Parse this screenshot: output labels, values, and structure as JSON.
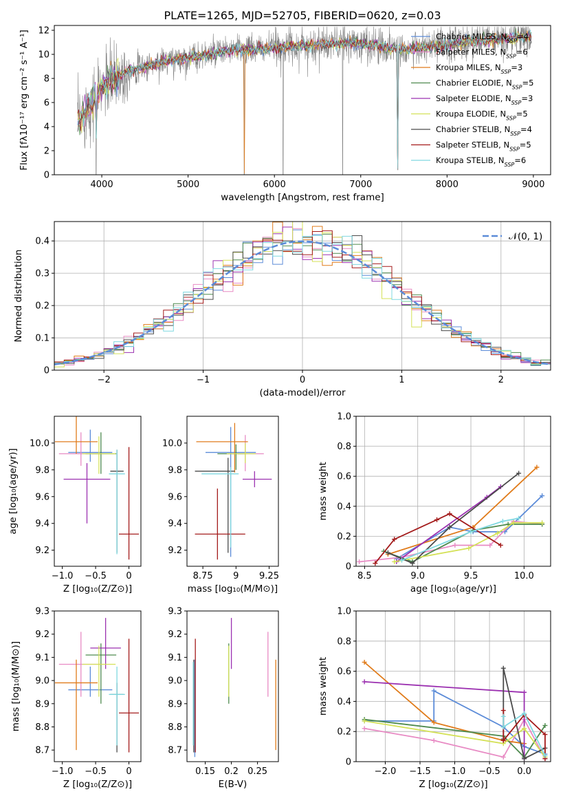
{
  "chart_data": [
    {
      "type": "line",
      "title": "PLATE=1265, MJD=52705, FIBERID=0620, z=0.03",
      "xlabel": "wavelength [Angstrom, rest frame]",
      "ylabel": "Flux [fλ10⁻¹⁷ erg cm⁻² s⁻¹ A⁻¹]",
      "xlim": [
        3450,
        9200
      ],
      "ylim": [
        0,
        12.4
      ],
      "xticks": [
        4000,
        5000,
        6000,
        7000,
        8000,
        9000
      ],
      "yticks": [
        0,
        2,
        4,
        6,
        8,
        10,
        12
      ],
      "grid": false,
      "legend_position": "right",
      "observed_color": "#808080",
      "series": [
        {
          "name": "Chabrier MILES, N_SSP=4",
          "color": "#5b8bd8"
        },
        {
          "name": "Salpeter MILES, N_SSP=6",
          "color": "#e88bc4"
        },
        {
          "name": "Kroupa MILES, N_SSP=3",
          "color": "#e07b1a"
        },
        {
          "name": "Chabrier ELODIE, N_SSP=5",
          "color": "#4e8a4e"
        },
        {
          "name": "Salpeter ELODIE, N_SSP=3",
          "color": "#9b30b0"
        },
        {
          "name": "Kroupa ELODIE, N_SSP=5",
          "color": "#d4e157"
        },
        {
          "name": "Chabrier STELIB, N_SSP=4",
          "color": "#4a4a4a"
        },
        {
          "name": "Salpeter STELIB, N_SSP=5",
          "color": "#a31a1a"
        },
        {
          "name": "Kroupa STELIB, N_SSP=6",
          "color": "#7fd8e0"
        }
      ],
      "continuum_x": [
        3700,
        3800,
        3900,
        4000,
        4100,
        4300,
        4500,
        4700,
        4900,
        5100,
        5300,
        5500,
        5700,
        5900,
        6100,
        6300,
        6500,
        6700,
        6900,
        7100,
        7300,
        7500,
        7700,
        7900,
        8100,
        8300,
        8500,
        8700,
        8900
      ],
      "continuum_y": [
        4.3,
        5.2,
        6.2,
        7.2,
        7.9,
        8.6,
        9.0,
        9.4,
        9.6,
        9.8,
        10.1,
        10.3,
        10.4,
        10.5,
        10.6,
        10.7,
        10.8,
        10.9,
        10.9,
        10.8,
        10.6,
        10.4,
        10.5,
        10.7,
        10.9,
        11.1,
        11.2,
        11.3,
        11.5
      ],
      "absorption_dips": [
        {
          "x": 3935,
          "depth": 0
        },
        {
          "x": 5650,
          "depth": 0
        },
        {
          "x": 6100,
          "depth": 0
        },
        {
          "x": 6790,
          "depth": 0
        },
        {
          "x": 7430,
          "depth": 0.4
        }
      ]
    },
    {
      "type": "bar",
      "xlabel": "(data-model)/error",
      "ylabel": "Normed distribution",
      "xlim": [
        -2.5,
        2.5
      ],
      "ylim": [
        0,
        0.46
      ],
      "xticks": [
        -2,
        -1,
        0,
        1,
        2
      ],
      "yticks": [
        0.0,
        0.1,
        0.2,
        0.3,
        0.4
      ],
      "grid": true,
      "legend_position": "top-right",
      "reference_curve": {
        "name": "𝒩(0, 1)",
        "mean": 0,
        "std": 1,
        "color": "#5b8bd8"
      },
      "bin_width": 0.1,
      "histogram_style": "step, one per model, same colors as spectrum"
    },
    {
      "type": "scatter",
      "xlabel": "Z [log₁₀(Z/Z⊙)]",
      "ylabel": "age  [log₁₀(age/yr)]",
      "xlim": [
        -1.12,
        0.18
      ],
      "ylim": [
        9.08,
        10.2
      ],
      "xticks": [
        -1.0,
        -0.5,
        0.0
      ],
      "yticks": [
        9.2,
        9.4,
        9.6,
        9.8,
        10.0
      ],
      "points": [
        {
          "x": -0.58,
          "y": 9.93,
          "xerr": [
            0.33,
            0.33
          ],
          "yerr": [
            0.07,
            0.17
          ],
          "color": "#5b8bd8"
        },
        {
          "x": -0.72,
          "y": 9.92,
          "xerr": [
            0.33,
            0.33
          ],
          "yerr": [
            0.09,
            0.16
          ],
          "color": "#e88bc4"
        },
        {
          "x": -0.79,
          "y": 10.01,
          "xerr": [
            0.32,
            0.32
          ],
          "yerr": [
            0.09,
            0.35
          ],
          "color": "#e07b1a"
        },
        {
          "x": -0.42,
          "y": 9.92,
          "xerr": [
            0.23,
            0.23
          ],
          "yerr": [
            0.15,
            0.16
          ],
          "color": "#4e8a4e"
        },
        {
          "x": -0.63,
          "y": 9.73,
          "xerr": [
            0.35,
            0.35
          ],
          "yerr": [
            0.33,
            0.12
          ],
          "color": "#9b30b0"
        },
        {
          "x": -0.45,
          "y": 9.92,
          "xerr": [
            0.25,
            0.25
          ],
          "yerr": [
            0.15,
            0.13
          ],
          "color": "#d4e157"
        },
        {
          "x": -0.18,
          "y": 9.79,
          "xerr": [
            0.1,
            0.1
          ],
          "yerr": [
            0.61,
            0.16
          ],
          "color": "#4a4a4a"
        },
        {
          "x": 0.0,
          "y": 9.32,
          "xerr": [
            0.15,
            0.15
          ],
          "yerr": [
            0.19,
            0.65
          ],
          "color": "#a31a1a"
        },
        {
          "x": -0.18,
          "y": 9.77,
          "xerr": [
            0.12,
            0.12
          ],
          "yerr": [
            0.6,
            0.18
          ],
          "color": "#7fd8e0"
        }
      ]
    },
    {
      "type": "scatter",
      "xlabel": "mass [log₁₀(M/M⊙)]",
      "ylabel": "",
      "xlim": [
        8.63,
        9.32
      ],
      "ylim": [
        9.08,
        10.2
      ],
      "xticks": [
        8.75,
        9.0,
        9.25
      ],
      "yticks": [
        9.2,
        9.4,
        9.6,
        9.8,
        10.0
      ],
      "points": [
        {
          "x": 8.96,
          "y": 9.93,
          "xerr": [
            0.19,
            0.19
          ],
          "yerr": [
            0.78,
            0.19
          ],
          "color": "#5b8bd8"
        },
        {
          "x": 9.07,
          "y": 9.92,
          "xerr": [
            0.14,
            0.14
          ],
          "yerr": [
            0.13,
            0.14
          ],
          "color": "#e88bc4"
        },
        {
          "x": 8.99,
          "y": 10.01,
          "xerr": [
            0.29,
            0.1
          ],
          "yerr": [
            0.23,
            0.14
          ],
          "color": "#e07b1a"
        },
        {
          "x": 9.0,
          "y": 9.92,
          "xerr": [
            0.14,
            0.07
          ],
          "yerr": [
            0.12,
            0.07
          ],
          "color": "#4e8a4e"
        },
        {
          "x": 9.14,
          "y": 9.73,
          "xerr": [
            0.09,
            0.13
          ],
          "yerr": [
            0.06,
            0.06
          ],
          "color": "#9b30b0"
        },
        {
          "x": 9.07,
          "y": 9.92,
          "xerr": [
            0.14,
            0.08
          ],
          "yerr": [
            0.07,
            0.08
          ],
          "color": "#d4e157"
        },
        {
          "x": 8.94,
          "y": 9.79,
          "xerr": [
            0.25,
            0.05
          ],
          "yerr": [
            0.61,
            0.1
          ],
          "color": "#4a4a4a"
        },
        {
          "x": 8.86,
          "y": 9.32,
          "xerr": [
            0.17,
            0.21
          ],
          "yerr": [
            0.19,
            0.34
          ],
          "color": "#a31a1a"
        },
        {
          "x": 8.96,
          "y": 9.77,
          "xerr": [
            0.22,
            0.06
          ],
          "yerr": [
            0.55,
            0.05
          ],
          "color": "#7fd8e0"
        }
      ]
    },
    {
      "type": "line",
      "xlabel": "age  [log₁₀(age/yr)]",
      "ylabel": "mass weight",
      "xlim": [
        8.42,
        10.25
      ],
      "ylim": [
        0,
        1
      ],
      "xticks": [
        8.5,
        9.0,
        9.5,
        10.0
      ],
      "yticks": [
        0.0,
        0.2,
        0.4,
        0.6,
        0.8,
        1.0
      ],
      "grid": true,
      "series": [
        {
          "color": "#5b8bd8",
          "x": [
            8.8,
            9.3,
            9.52,
            9.82,
            10.17
          ],
          "y": [
            0.05,
            0.26,
            0.23,
            0.23,
            0.47
          ]
        },
        {
          "color": "#e88bc4",
          "x": [
            8.45,
            8.85,
            9.35,
            9.68,
            9.9,
            10.17
          ],
          "y": [
            0.03,
            0.06,
            0.14,
            0.14,
            0.3,
            0.28
          ]
        },
        {
          "color": "#e07b1a",
          "x": [
            8.72,
            9.52,
            10.12
          ],
          "y": [
            0.08,
            0.26,
            0.66
          ]
        },
        {
          "color": "#4e8a4e",
          "x": [
            8.68,
            8.95,
            9.52,
            9.85,
            10.17
          ],
          "y": [
            0.1,
            0.03,
            0.24,
            0.28,
            0.28
          ]
        },
        {
          "color": "#9b30b0",
          "x": [
            8.8,
            9.65,
            9.78
          ],
          "y": [
            0.03,
            0.46,
            0.53
          ]
        },
        {
          "color": "#d4e157",
          "x": [
            8.78,
            9.48,
            9.75,
            9.9,
            10.17
          ],
          "y": [
            0.03,
            0.12,
            0.22,
            0.29,
            0.29
          ]
        },
        {
          "color": "#4a4a4a",
          "x": [
            8.72,
            8.95,
            9.3,
            9.95
          ],
          "y": [
            0.09,
            0.02,
            0.26,
            0.62
          ]
        },
        {
          "color": "#a31a1a",
          "x": [
            8.6,
            8.78,
            9.18,
            9.3,
            9.78
          ],
          "y": [
            0.02,
            0.18,
            0.31,
            0.35,
            0.14
          ]
        },
        {
          "color": "#7fd8e0",
          "x": [
            8.85,
            9.5,
            9.8,
            9.95
          ],
          "y": [
            0.04,
            0.23,
            0.3,
            0.32
          ]
        }
      ]
    },
    {
      "type": "scatter",
      "xlabel": "Z [log₁₀(Z/Z⊙)]",
      "ylabel": "mass [log₁₀(M/M⊙)]",
      "xlim": [
        -1.12,
        0.18
      ],
      "ylim": [
        8.65,
        9.3
      ],
      "xticks": [
        -1.0,
        -0.5,
        0.0
      ],
      "yticks": [
        8.7,
        8.8,
        8.9,
        9.0,
        9.1,
        9.2,
        9.3
      ],
      "points": [
        {
          "x": -0.58,
          "y": 8.96,
          "xerr": [
            0.33,
            0.33
          ],
          "yerr": [
            0.03,
            0.1
          ],
          "color": "#5b8bd8"
        },
        {
          "x": -0.72,
          "y": 9.07,
          "xerr": [
            0.33,
            0.33
          ],
          "yerr": [
            0.14,
            0.14
          ],
          "color": "#e88bc4"
        },
        {
          "x": -0.79,
          "y": 8.99,
          "xerr": [
            0.32,
            0.32
          ],
          "yerr": [
            0.29,
            0.1
          ],
          "color": "#e07b1a"
        },
        {
          "x": -0.42,
          "y": 9.11,
          "xerr": [
            0.23,
            0.23
          ],
          "yerr": [
            0.21,
            0.05
          ],
          "color": "#4e8a4e"
        },
        {
          "x": -0.35,
          "y": 9.14,
          "xerr": [
            0.23,
            0.23
          ],
          "yerr": [
            0.09,
            0.13
          ],
          "color": "#9b30b0"
        },
        {
          "x": -0.45,
          "y": 9.07,
          "xerr": [
            0.25,
            0.25
          ],
          "yerr": [
            0.14,
            0.08
          ],
          "color": "#d4e157"
        },
        {
          "x": -0.18,
          "y": 8.94,
          "xerr": [
            0.1,
            0.1
          ],
          "yerr": [
            0.25,
            0.05
          ],
          "color": "#4a4a4a"
        },
        {
          "x": 0.0,
          "y": 8.86,
          "xerr": [
            0.15,
            0.15
          ],
          "yerr": [
            0.17,
            0.32
          ],
          "color": "#a31a1a"
        },
        {
          "x": -0.18,
          "y": 8.94,
          "xerr": [
            0.12,
            0.12
          ],
          "yerr": [
            0.22,
            0.12
          ],
          "color": "#7fd8e0"
        }
      ]
    },
    {
      "type": "scatter",
      "xlabel": "E(B-V)",
      "ylabel": "",
      "xlim": [
        0.115,
        0.29
      ],
      "ylim": [
        8.65,
        9.3
      ],
      "xticks": [
        0.15,
        0.2,
        0.25
      ],
      "yticks": [
        8.7,
        8.8,
        8.9,
        9.0,
        9.1,
        9.2,
        9.3
      ],
      "points": [
        {
          "x": 0.13,
          "y": 8.96,
          "yerr": [
            0.29,
            0.13
          ],
          "color": "#5b8bd8"
        },
        {
          "x": 0.27,
          "y": 9.07,
          "yerr": [
            0.14,
            0.14
          ],
          "color": "#e88bc4"
        },
        {
          "x": 0.285,
          "y": 8.99,
          "yerr": [
            0.29,
            0.1
          ],
          "color": "#e07b1a"
        },
        {
          "x": 0.195,
          "y": 9.11,
          "yerr": [
            0.21,
            0.05
          ],
          "color": "#4e8a4e"
        },
        {
          "x": 0.2,
          "y": 9.14,
          "yerr": [
            0.09,
            0.13
          ],
          "color": "#9b30b0"
        },
        {
          "x": 0.195,
          "y": 9.07,
          "yerr": [
            0.14,
            0.08
          ],
          "color": "#d4e157"
        },
        {
          "x": 0.128,
          "y": 8.94,
          "yerr": [
            0.25,
            0.15
          ],
          "color": "#4a4a4a"
        },
        {
          "x": 0.131,
          "y": 9.0,
          "yerr": [
            0.31,
            0.18
          ],
          "color": "#a31a1a"
        },
        {
          "x": 0.127,
          "y": 8.94,
          "yerr": [
            0.22,
            0.14
          ],
          "color": "#7fd8e0"
        }
      ]
    },
    {
      "type": "line",
      "xlabel": "Z [log₁₀(Z/Z⊙)]",
      "ylabel": "mass weight",
      "xlim": [
        -2.42,
        0.38
      ],
      "ylim": [
        0,
        1
      ],
      "xticks": [
        -2.0,
        -1.5,
        -1.0,
        -0.5,
        0.0
      ],
      "yticks": [
        0.0,
        0.2,
        0.4,
        0.6,
        0.8,
        1.0
      ],
      "grid": true,
      "series": [
        {
          "color": "#5b8bd8",
          "x": [
            -2.3,
            -1.3,
            -1.3,
            -0.3,
            0.0,
            0.3
          ],
          "y": [
            0.27,
            0.27,
            0.47,
            0.23,
            0.1,
            0.05
          ]
        },
        {
          "color": "#e88bc4",
          "x": [
            -2.3,
            -1.3,
            -0.3,
            0.0,
            0.3
          ],
          "y": [
            0.22,
            0.14,
            0.03,
            0.28,
            0.02
          ]
        },
        {
          "color": "#e07b1a",
          "x": [
            -2.3,
            -1.3,
            -0.3,
            0.0
          ],
          "y": [
            0.66,
            0.26,
            0.14,
            0.12
          ]
        },
        {
          "color": "#4e8a4e",
          "x": [
            -2.3,
            -0.3,
            0.0,
            0.3
          ],
          "y": [
            0.28,
            0.17,
            0.03,
            0.24
          ]
        },
        {
          "color": "#9b30b0",
          "x": [
            -2.3,
            0.0,
            0.0
          ],
          "y": [
            0.53,
            0.46,
            0.02
          ]
        },
        {
          "color": "#d4e157",
          "x": [
            -2.3,
            -0.3,
            0.0,
            0.3
          ],
          "y": [
            0.27,
            0.12,
            0.22,
            0.03
          ]
        },
        {
          "color": "#4a4a4a",
          "x": [
            -0.3,
            -0.3,
            0.0,
            0.3
          ],
          "y": [
            0.15,
            0.62,
            0.02,
            0.09
          ]
        },
        {
          "color": "#a31a1a",
          "x": [
            -0.3,
            -0.3,
            0.0,
            0.3,
            0.3
          ],
          "y": [
            0.34,
            0.14,
            0.31,
            0.18,
            0.02
          ]
        },
        {
          "color": "#7fd8e0",
          "x": [
            -0.3,
            -0.3,
            0.0,
            0.3
          ],
          "y": [
            0.3,
            0.23,
            0.32,
            0.04
          ]
        }
      ]
    }
  ]
}
